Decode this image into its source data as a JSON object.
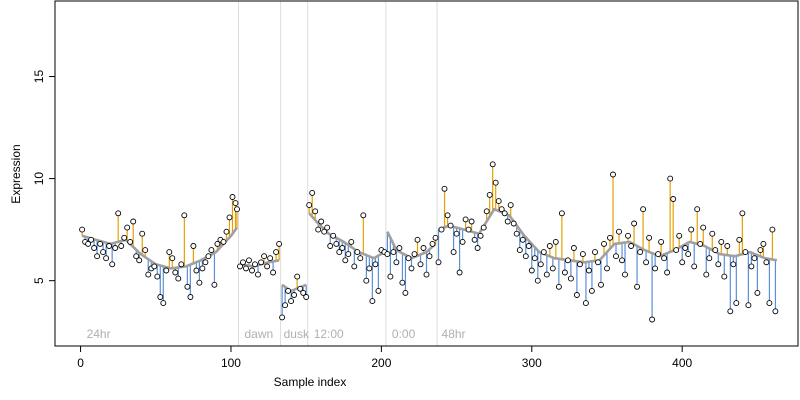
{
  "chart_data": {
    "type": "scatter",
    "title": "",
    "xlabel": "Sample index",
    "ylabel": "Expression",
    "xlim": [
      -17,
      477
    ],
    "ylim": [
      1.8,
      18.7
    ],
    "xticks": [
      0,
      100,
      200,
      300,
      400
    ],
    "yticks": [
      5,
      10,
      15
    ],
    "grid": false,
    "legend": "none",
    "colors": {
      "above": "#e69f00",
      "below": "#5b8fd6",
      "smooth": "#a0a0a0",
      "vline": "#dddddd",
      "annotation": "#b0b0b0",
      "point_fill": "#ffffff",
      "point_stroke": "#000000"
    },
    "vlines": [
      {
        "x": 105,
        "label": ""
      },
      {
        "x": 133,
        "label": ""
      },
      {
        "x": 151,
        "label": ""
      },
      {
        "x": 203,
        "label": ""
      },
      {
        "x": 237,
        "label": ""
      }
    ],
    "annotations": [
      {
        "x": 2,
        "text": "24hr"
      },
      {
        "x": 107,
        "text": "dawn"
      },
      {
        "x": 133,
        "text": "dusk"
      },
      {
        "x": 153,
        "text": "12:00"
      },
      {
        "x": 205,
        "text": "0:00"
      },
      {
        "x": 238,
        "text": "48hr"
      }
    ],
    "smooth": [
      [
        1,
        7.2
      ],
      [
        10,
        7.0
      ],
      [
        20,
        6.8
      ],
      [
        30,
        7.0
      ],
      [
        40,
        6.3
      ],
      [
        50,
        5.8
      ],
      [
        60,
        5.6
      ],
      [
        70,
        5.7
      ],
      [
        80,
        6.0
      ],
      [
        90,
        6.4
      ],
      [
        100,
        7.2
      ],
      [
        104,
        7.6
      ],
      [
        106,
        5.8
      ],
      [
        115,
        5.7
      ],
      [
        125,
        5.9
      ],
      [
        132,
        6.0
      ],
      [
        134,
        4.8
      ],
      [
        140,
        4.5
      ],
      [
        150,
        4.8
      ],
      [
        152,
        8.3
      ],
      [
        158,
        7.8
      ],
      [
        165,
        7.3
      ],
      [
        175,
        6.9
      ],
      [
        185,
        6.4
      ],
      [
        195,
        6.1
      ],
      [
        202,
        6.4
      ],
      [
        204,
        7.4
      ],
      [
        210,
        6.5
      ],
      [
        220,
        6.1
      ],
      [
        230,
        6.4
      ],
      [
        236,
        6.8
      ],
      [
        238,
        7.5
      ],
      [
        245,
        7.7
      ],
      [
        255,
        7.5
      ],
      [
        265,
        7.3
      ],
      [
        275,
        8.5
      ],
      [
        285,
        8.2
      ],
      [
        295,
        7.2
      ],
      [
        305,
        6.4
      ],
      [
        315,
        6.1
      ],
      [
        325,
        6.0
      ],
      [
        335,
        5.9
      ],
      [
        345,
        6.0
      ],
      [
        355,
        6.8
      ],
      [
        365,
        6.9
      ],
      [
        375,
        6.5
      ],
      [
        385,
        6.2
      ],
      [
        395,
        6.5
      ],
      [
        405,
        6.9
      ],
      [
        415,
        6.7
      ],
      [
        425,
        6.3
      ],
      [
        435,
        6.2
      ],
      [
        445,
        6.4
      ],
      [
        455,
        6.1
      ],
      [
        463,
        6.0
      ]
    ],
    "points": [
      [
        1,
        7.5
      ],
      [
        3,
        6.9
      ],
      [
        5,
        6.8
      ],
      [
        7,
        7.0
      ],
      [
        9,
        6.6
      ],
      [
        11,
        6.2
      ],
      [
        13,
        6.8
      ],
      [
        15,
        6.4
      ],
      [
        17,
        6.1
      ],
      [
        19,
        6.7
      ],
      [
        21,
        5.8
      ],
      [
        23,
        6.6
      ],
      [
        25,
        8.3
      ],
      [
        27,
        6.7
      ],
      [
        29,
        7.1
      ],
      [
        31,
        7.6
      ],
      [
        33,
        6.9
      ],
      [
        35,
        7.9
      ],
      [
        37,
        6.2
      ],
      [
        39,
        6.0
      ],
      [
        41,
        7.3
      ],
      [
        43,
        6.5
      ],
      [
        45,
        5.3
      ],
      [
        47,
        5.6
      ],
      [
        49,
        5.7
      ],
      [
        51,
        5.2
      ],
      [
        53,
        4.2
      ],
      [
        55,
        3.9
      ],
      [
        57,
        5.5
      ],
      [
        59,
        6.4
      ],
      [
        61,
        6.1
      ],
      [
        63,
        5.4
      ],
      [
        65,
        5.1
      ],
      [
        67,
        5.8
      ],
      [
        69,
        8.2
      ],
      [
        71,
        4.7
      ],
      [
        73,
        4.2
      ],
      [
        75,
        6.7
      ],
      [
        77,
        5.5
      ],
      [
        79,
        4.9
      ],
      [
        81,
        5.6
      ],
      [
        83,
        5.9
      ],
      [
        85,
        6.2
      ],
      [
        87,
        6.5
      ],
      [
        89,
        4.8
      ],
      [
        91,
        6.8
      ],
      [
        93,
        7.0
      ],
      [
        95,
        6.9
      ],
      [
        97,
        7.4
      ],
      [
        99,
        8.1
      ],
      [
        101,
        9.1
      ],
      [
        103,
        8.8
      ],
      [
        104,
        8.5
      ],
      [
        106,
        5.7
      ],
      [
        108,
        5.9
      ],
      [
        110,
        5.6
      ],
      [
        112,
        6.0
      ],
      [
        114,
        5.5
      ],
      [
        116,
        5.8
      ],
      [
        118,
        5.3
      ],
      [
        120,
        5.9
      ],
      [
        122,
        6.2
      ],
      [
        124,
        5.7
      ],
      [
        126,
        6.1
      ],
      [
        128,
        5.4
      ],
      [
        130,
        6.4
      ],
      [
        132,
        6.8
      ],
      [
        134,
        3.2
      ],
      [
        136,
        3.8
      ],
      [
        138,
        4.5
      ],
      [
        140,
        4.0
      ],
      [
        142,
        4.3
      ],
      [
        144,
        5.2
      ],
      [
        146,
        4.6
      ],
      [
        148,
        4.4
      ],
      [
        150,
        4.2
      ],
      [
        152,
        8.7
      ],
      [
        154,
        9.3
      ],
      [
        156,
        8.4
      ],
      [
        158,
        7.5
      ],
      [
        160,
        7.9
      ],
      [
        162,
        7.4
      ],
      [
        164,
        7.6
      ],
      [
        166,
        6.7
      ],
      [
        168,
        7.2
      ],
      [
        170,
        6.8
      ],
      [
        172,
        6.4
      ],
      [
        174,
        6.6
      ],
      [
        176,
        6.0
      ],
      [
        178,
        6.3
      ],
      [
        180,
        6.9
      ],
      [
        182,
        5.7
      ],
      [
        184,
        6.4
      ],
      [
        186,
        6.1
      ],
      [
        188,
        8.2
      ],
      [
        190,
        5.0
      ],
      [
        192,
        5.6
      ],
      [
        194,
        4.0
      ],
      [
        196,
        5.8
      ],
      [
        198,
        4.5
      ],
      [
        200,
        6.5
      ],
      [
        202,
        6.4
      ],
      [
        204,
        6.3
      ],
      [
        206,
        5.2
      ],
      [
        208,
        6.4
      ],
      [
        210,
        5.9
      ],
      [
        212,
        6.6
      ],
      [
        214,
        4.9
      ],
      [
        216,
        4.4
      ],
      [
        218,
        6.1
      ],
      [
        220,
        5.6
      ],
      [
        222,
        6.3
      ],
      [
        224,
        7.0
      ],
      [
        226,
        5.8
      ],
      [
        228,
        6.6
      ],
      [
        230,
        5.3
      ],
      [
        232,
        6.2
      ],
      [
        234,
        6.8
      ],
      [
        236,
        7.1
      ],
      [
        238,
        5.9
      ],
      [
        240,
        7.5
      ],
      [
        242,
        9.5
      ],
      [
        244,
        8.2
      ],
      [
        246,
        7.7
      ],
      [
        248,
        6.4
      ],
      [
        250,
        7.3
      ],
      [
        252,
        5.4
      ],
      [
        254,
        6.9
      ],
      [
        256,
        8.0
      ],
      [
        258,
        7.5
      ],
      [
        260,
        7.9
      ],
      [
        262,
        7.0
      ],
      [
        264,
        6.6
      ],
      [
        266,
        7.2
      ],
      [
        268,
        7.6
      ],
      [
        270,
        8.4
      ],
      [
        272,
        9.2
      ],
      [
        274,
        10.7
      ],
      [
        276,
        9.8
      ],
      [
        278,
        8.9
      ],
      [
        280,
        8.5
      ],
      [
        282,
        8.3
      ],
      [
        284,
        7.9
      ],
      [
        286,
        8.7
      ],
      [
        288,
        7.8
      ],
      [
        290,
        7.3
      ],
      [
        292,
        6.5
      ],
      [
        294,
        7.0
      ],
      [
        296,
        6.2
      ],
      [
        298,
        6.7
      ],
      [
        300,
        5.5
      ],
      [
        302,
        6.1
      ],
      [
        304,
        5.0
      ],
      [
        306,
        5.8
      ],
      [
        308,
        6.4
      ],
      [
        310,
        5.3
      ],
      [
        312,
        6.7
      ],
      [
        314,
        5.6
      ],
      [
        316,
        6.9
      ],
      [
        318,
        4.7
      ],
      [
        320,
        8.3
      ],
      [
        322,
        5.4
      ],
      [
        324,
        6.0
      ],
      [
        326,
        5.1
      ],
      [
        328,
        6.6
      ],
      [
        330,
        4.3
      ],
      [
        332,
        5.8
      ],
      [
        334,
        6.3
      ],
      [
        336,
        3.9
      ],
      [
        338,
        5.5
      ],
      [
        340,
        4.5
      ],
      [
        342,
        6.4
      ],
      [
        344,
        5.9
      ],
      [
        346,
        4.8
      ],
      [
        348,
        6.8
      ],
      [
        350,
        5.6
      ],
      [
        352,
        7.1
      ],
      [
        354,
        10.2
      ],
      [
        356,
        6.2
      ],
      [
        358,
        7.4
      ],
      [
        360,
        6.0
      ],
      [
        362,
        5.3
      ],
      [
        364,
        7.2
      ],
      [
        366,
        6.7
      ],
      [
        368,
        7.8
      ],
      [
        370,
        4.7
      ],
      [
        372,
        6.4
      ],
      [
        374,
        8.5
      ],
      [
        376,
        5.9
      ],
      [
        378,
        7.1
      ],
      [
        380,
        3.1
      ],
      [
        382,
        5.6
      ],
      [
        384,
        6.3
      ],
      [
        386,
        6.9
      ],
      [
        388,
        6.1
      ],
      [
        390,
        5.4
      ],
      [
        392,
        10.0
      ],
      [
        394,
        9.0
      ],
      [
        396,
        6.5
      ],
      [
        398,
        7.2
      ],
      [
        400,
        5.9
      ],
      [
        402,
        6.6
      ],
      [
        404,
        6.3
      ],
      [
        406,
        7.5
      ],
      [
        408,
        5.7
      ],
      [
        410,
        8.5
      ],
      [
        412,
        6.8
      ],
      [
        414,
        7.6
      ],
      [
        416,
        5.3
      ],
      [
        418,
        6.1
      ],
      [
        420,
        7.3
      ],
      [
        422,
        6.5
      ],
      [
        424,
        5.8
      ],
      [
        426,
        6.9
      ],
      [
        428,
        5.2
      ],
      [
        430,
        6.7
      ],
      [
        432,
        3.5
      ],
      [
        434,
        5.8
      ],
      [
        436,
        3.9
      ],
      [
        438,
        7.0
      ],
      [
        440,
        8.3
      ],
      [
        442,
        6.4
      ],
      [
        444,
        3.8
      ],
      [
        446,
        5.7
      ],
      [
        448,
        6.1
      ],
      [
        450,
        4.4
      ],
      [
        452,
        6.5
      ],
      [
        454,
        6.8
      ],
      [
        456,
        5.9
      ],
      [
        458,
        3.9
      ],
      [
        460,
        7.5
      ],
      [
        462,
        3.5
      ]
    ]
  }
}
